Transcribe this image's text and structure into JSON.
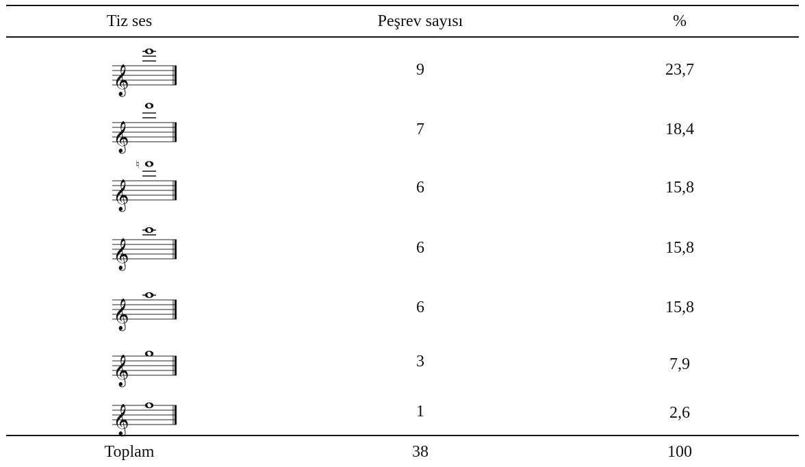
{
  "header": {
    "col_pitch": "Tiz ses",
    "col_count": "Peşrev sayısı",
    "col_percent": "%"
  },
  "rows": [
    {
      "count": "9",
      "percent": "23,7",
      "ledger_lines": 3,
      "note_step": 0.0,
      "natural": false
    },
    {
      "count": "7",
      "percent": "18,4",
      "ledger_lines": 2,
      "note_step": 1.5,
      "natural": false
    },
    {
      "count": "6",
      "percent": "15,8",
      "ledger_lines": 2,
      "note_step": 1.5,
      "natural": true
    },
    {
      "count": "6",
      "percent": "15,8",
      "ledger_lines": 2,
      "note_step": 0.0,
      "natural": false
    },
    {
      "count": "6",
      "percent": "15,8",
      "ledger_lines": 1,
      "note_step": 0.0,
      "natural": false
    },
    {
      "count": "3",
      "percent": "7,9",
      "ledger_lines": 0,
      "note_step": 0.5,
      "natural": false
    },
    {
      "count": "1",
      "percent": "2,6",
      "ledger_lines": 0,
      "note_step": 0.0,
      "natural": false
    }
  ],
  "total": {
    "label": "Toplam",
    "count": "38",
    "percent": "100"
  }
}
